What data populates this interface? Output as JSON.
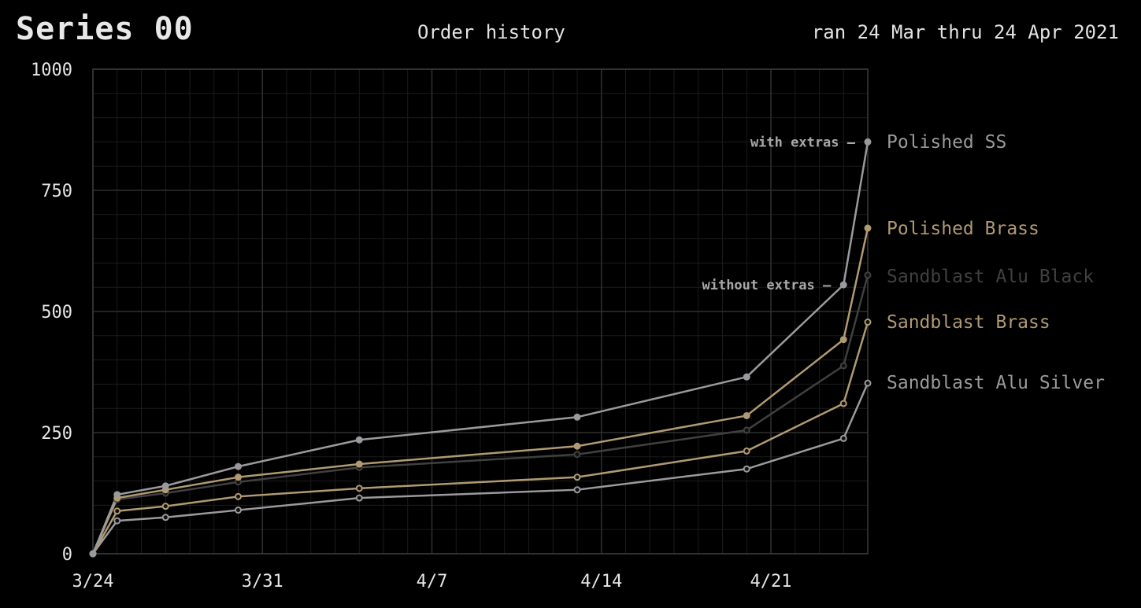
{
  "header": {
    "title": "Series 00",
    "subtitle": "Order history",
    "date_range": "ran 24 Mar thru 24 Apr 2021"
  },
  "chart_data": {
    "type": "line",
    "title": "Order history",
    "xlabel": "",
    "ylabel": "",
    "xlim": [
      "2021-03-24",
      "2021-04-25"
    ],
    "ylim": [
      0,
      1000
    ],
    "y_ticks": [
      0,
      250,
      500,
      750,
      1000
    ],
    "x_ticks": [
      {
        "date": "2021-03-24",
        "label": "3/24"
      },
      {
        "date": "2021-03-31",
        "label": "3/31"
      },
      {
        "date": "2021-04-07",
        "label": "4/7"
      },
      {
        "date": "2021-04-14",
        "label": "4/14"
      },
      {
        "date": "2021-04-21",
        "label": "4/21"
      }
    ],
    "grid": true,
    "legend": "right, labels at line ends",
    "x": [
      "2021-03-24",
      "2021-03-25",
      "2021-03-27",
      "2021-03-30",
      "2021-04-04",
      "2021-04-13",
      "2021-04-20",
      "2021-04-24",
      "2021-04-25"
    ],
    "series": [
      {
        "name": "Polished SS",
        "color": "#9a9a9e",
        "values": [
          0,
          122,
          140,
          180,
          235,
          282,
          365,
          555,
          850
        ]
      },
      {
        "name": "Polished Brass",
        "color": "#b09a72",
        "values": [
          0,
          115,
          132,
          158,
          185,
          222,
          285,
          442,
          672
        ]
      },
      {
        "name": "Sandblast Alu Black",
        "color": "#404040",
        "values": [
          0,
          112,
          125,
          148,
          178,
          205,
          255,
          388,
          575
        ]
      },
      {
        "name": "Sandblast Brass",
        "color": "#b09a72",
        "values": [
          0,
          88,
          98,
          118,
          135,
          158,
          212,
          310,
          478
        ]
      },
      {
        "name": "Sandblast Alu Silver",
        "color": "#9a9a9e",
        "values": [
          0,
          68,
          75,
          90,
          115,
          132,
          175,
          238,
          352
        ]
      }
    ],
    "annotations": [
      {
        "text": "with extras –",
        "series": "Polished SS",
        "point_index": 8
      },
      {
        "text": "without extras –",
        "series": "Polished SS",
        "point_index": 7
      }
    ]
  }
}
